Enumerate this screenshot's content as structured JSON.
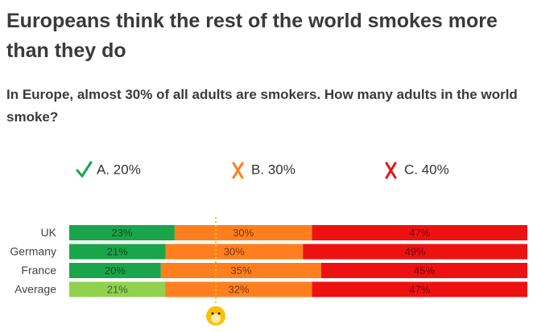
{
  "chart_data": {
    "type": "stacked_bar_horizontal",
    "title": "Europeans think the rest of the world smokes more than they do",
    "subtitle": "In Europe, almost 30% of all adults are smokers. How many adults in the world smoke?",
    "categories": [
      "UK",
      "Germany",
      "France",
      "Average"
    ],
    "series": [
      {
        "name": "A. 20%",
        "color": "#1aa54b",
        "colors": [
          "#1aa54b",
          "#1aa54b",
          "#1aa54b",
          "#92d050"
        ],
        "correct": true,
        "values": [
          23,
          21,
          20,
          21
        ],
        "value_labels": [
          "23%",
          "21%",
          "20%",
          "21%"
        ]
      },
      {
        "name": "B. 30%",
        "color": "#ff7f1e",
        "correct": false,
        "values": [
          30,
          30,
          35,
          32
        ],
        "value_labels": [
          "30%",
          "30%",
          "35%",
          "32%"
        ]
      },
      {
        "name": "C. 40%",
        "color": "#ee1111",
        "correct": false,
        "values": [
          47,
          49,
          45,
          47
        ],
        "value_labels": [
          "47%",
          "49%",
          "45%",
          "47%"
        ]
      }
    ],
    "xlim": [
      0,
      100
    ],
    "reference_line": 32,
    "reference_color": "#ffc000"
  }
}
